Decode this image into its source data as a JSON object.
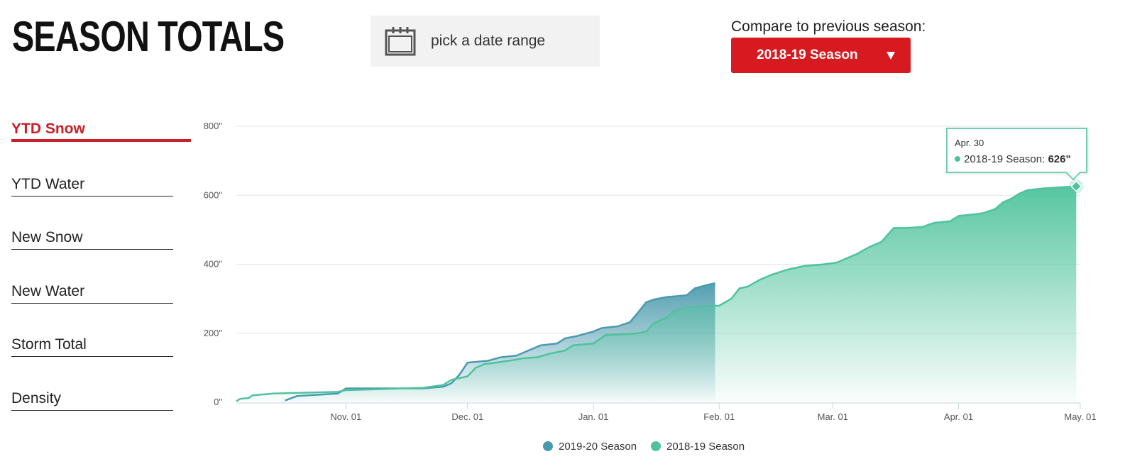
{
  "header": {
    "title": "SEASON TOTALS",
    "date_range_label": "pick a date range",
    "compare_label": "Compare to previous season:",
    "compare_selected": "2018-19 Season"
  },
  "tabs": [
    {
      "label": "YTD Snow",
      "active": true
    },
    {
      "label": "YTD Water",
      "active": false
    },
    {
      "label": "New Snow",
      "active": false
    },
    {
      "label": "New Water",
      "active": false
    },
    {
      "label": "Storm Total",
      "active": false
    },
    {
      "label": "Density",
      "active": false
    }
  ],
  "icons": {
    "date_picker": "calendar-icon",
    "dropdown": "caret-down-icon"
  },
  "colors": {
    "accent": "#d71920",
    "series_2019_20": "#4a9aad",
    "series_2018_19": "#4ec39b"
  },
  "tooltip": {
    "date": "Apr. 30",
    "series": "2018-19 Season",
    "value": "626\""
  },
  "chart_data": {
    "type": "area",
    "x_start": "2018-10-05",
    "x_end": "2019-05-01",
    "y_unit": "\"",
    "ylim": [
      0,
      800
    ],
    "yticks": [
      0,
      200,
      400,
      600,
      800
    ],
    "ytick_labels": [
      "0\"",
      "200\"",
      "400\"",
      "600\"",
      "800\""
    ],
    "xticks": [
      "2018-11-01",
      "2018-12-01",
      "2019-01-01",
      "2019-02-01",
      "2019-03-01",
      "2019-04-01",
      "2019-05-01"
    ],
    "xtick_labels": [
      "Nov. 01",
      "Dec. 01",
      "Jan. 01",
      "Feb. 01",
      "Mar. 01",
      "Apr. 01",
      "May. 01"
    ],
    "grid": true,
    "legend_position": "bottom",
    "series": [
      {
        "name": "2019-20 Season",
        "color": "#4a9aad",
        "points": [
          [
            "2018-10-17",
            5
          ],
          [
            "2018-10-20",
            18
          ],
          [
            "2018-10-30",
            25
          ],
          [
            "2018-11-01",
            40
          ],
          [
            "2018-11-20",
            40
          ],
          [
            "2018-11-25",
            45
          ],
          [
            "2018-11-27",
            55
          ],
          [
            "2018-11-29",
            80
          ],
          [
            "2018-12-01",
            115
          ],
          [
            "2018-12-06",
            120
          ],
          [
            "2018-12-09",
            130
          ],
          [
            "2018-12-13",
            135
          ],
          [
            "2018-12-15",
            145
          ],
          [
            "2018-12-19",
            165
          ],
          [
            "2018-12-23",
            170
          ],
          [
            "2018-12-25",
            185
          ],
          [
            "2018-12-28",
            192
          ],
          [
            "2019-01-01",
            205
          ],
          [
            "2019-01-03",
            215
          ],
          [
            "2019-01-07",
            220
          ],
          [
            "2019-01-10",
            232
          ],
          [
            "2019-01-12",
            260
          ],
          [
            "2019-01-14",
            290
          ],
          [
            "2019-01-16",
            298
          ],
          [
            "2019-01-19",
            305
          ],
          [
            "2019-01-24",
            310
          ],
          [
            "2019-01-26",
            330
          ],
          [
            "2019-01-29",
            340
          ],
          [
            "2019-01-31",
            345
          ]
        ]
      },
      {
        "name": "2018-19 Season",
        "color": "#4ec39b",
        "points": [
          [
            "2018-10-05",
            3
          ],
          [
            "2018-10-06",
            10
          ],
          [
            "2018-10-08",
            12
          ],
          [
            "2018-10-09",
            20
          ],
          [
            "2018-10-14",
            25
          ],
          [
            "2018-10-30",
            30
          ],
          [
            "2018-11-01",
            35
          ],
          [
            "2018-11-10",
            38
          ],
          [
            "2018-11-15",
            40
          ],
          [
            "2018-11-20",
            42
          ],
          [
            "2018-11-25",
            50
          ],
          [
            "2018-11-27",
            65
          ],
          [
            "2018-11-29",
            70
          ],
          [
            "2018-12-01",
            75
          ],
          [
            "2018-12-03",
            100
          ],
          [
            "2018-12-05",
            110
          ],
          [
            "2018-12-08",
            115
          ],
          [
            "2018-12-11",
            120
          ],
          [
            "2018-12-15",
            128
          ],
          [
            "2018-12-18",
            130
          ],
          [
            "2018-12-21",
            140
          ],
          [
            "2018-12-25",
            150
          ],
          [
            "2018-12-27",
            165
          ],
          [
            "2019-01-01",
            170
          ],
          [
            "2019-01-04",
            195
          ],
          [
            "2019-01-08",
            197
          ],
          [
            "2019-01-12",
            200
          ],
          [
            "2019-01-14",
            205
          ],
          [
            "2019-01-16",
            230
          ],
          [
            "2019-01-19",
            245
          ],
          [
            "2019-01-21",
            265
          ],
          [
            "2019-01-24",
            275
          ],
          [
            "2019-01-28",
            278
          ],
          [
            "2019-02-01",
            280
          ],
          [
            "2019-02-04",
            300
          ],
          [
            "2019-02-06",
            330
          ],
          [
            "2019-02-08",
            335
          ],
          [
            "2019-02-11",
            355
          ],
          [
            "2019-02-14",
            370
          ],
          [
            "2019-02-18",
            385
          ],
          [
            "2019-02-22",
            395
          ],
          [
            "2019-02-27",
            400
          ],
          [
            "2019-03-02",
            405
          ],
          [
            "2019-03-04",
            415
          ],
          [
            "2019-03-07",
            430
          ],
          [
            "2019-03-10",
            450
          ],
          [
            "2019-03-13",
            465
          ],
          [
            "2019-03-16",
            505
          ],
          [
            "2019-03-19",
            505
          ],
          [
            "2019-03-23",
            508
          ],
          [
            "2019-03-26",
            520
          ],
          [
            "2019-03-30",
            525
          ],
          [
            "2019-04-01",
            540
          ],
          [
            "2019-04-05",
            545
          ],
          [
            "2019-04-07",
            548
          ],
          [
            "2019-04-10",
            560
          ],
          [
            "2019-04-12",
            580
          ],
          [
            "2019-04-14",
            590
          ],
          [
            "2019-04-16",
            605
          ],
          [
            "2019-04-18",
            615
          ],
          [
            "2019-04-22",
            620
          ],
          [
            "2019-04-30",
            626
          ]
        ]
      }
    ]
  },
  "legend": {
    "items": [
      {
        "label": "2019-20 Season",
        "color": "#4a9aad"
      },
      {
        "label": "2018-19 Season",
        "color": "#4ec39b"
      }
    ]
  }
}
